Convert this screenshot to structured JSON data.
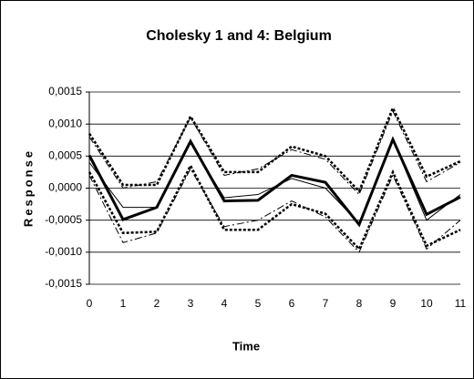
{
  "chart_data": {
    "type": "line",
    "title": "Cholesky 1 and 4: Belgium",
    "x_label": "Time",
    "y_label": "Response",
    "x": [
      0,
      1,
      2,
      3,
      4,
      5,
      6,
      7,
      8,
      9,
      10,
      11
    ],
    "xlim": [
      0,
      11
    ],
    "xticks": [
      0,
      1,
      2,
      3,
      4,
      5,
      6,
      7,
      8,
      9,
      10,
      11
    ],
    "ylim": [
      -0.0015,
      0.0015
    ],
    "yticks": [
      {
        "value": -0.0015,
        "label": "-0,0015"
      },
      {
        "value": -0.001,
        "label": "-0,0010"
      },
      {
        "value": -0.0005,
        "label": "-0,0005"
      },
      {
        "value": 0,
        "label": "0,0000"
      },
      {
        "value": 0.0005,
        "label": "0,0005"
      },
      {
        "value": 0.001,
        "label": "0,0010"
      },
      {
        "value": 0.0015,
        "label": "0,0015"
      }
    ],
    "grid": true,
    "series": [
      {
        "color": "#000000",
        "dash": "none",
        "width": 3,
        "values": [
          0.00051,
          -0.00049,
          -0.0003,
          0.00073,
          -0.0002,
          -0.00019,
          0.0002,
          9e-05,
          -0.00057,
          0.00076,
          -0.00041,
          -0.00014
        ]
      },
      {
        "color": "#000000",
        "dash": "none",
        "width": 1,
        "values": [
          0.0004,
          -0.0003,
          -0.0003,
          0.0007,
          -0.00015,
          -0.0001,
          0.00015,
          0.0,
          -0.00055,
          0.00075,
          -0.0005,
          -0.0001
        ]
      },
      {
        "color": "#000000",
        "dash": "8 3 2 3",
        "width": 1,
        "values": [
          0.0008,
          0.0,
          0.0001,
          0.0011,
          0.0002,
          0.0003,
          0.0006,
          0.00045,
          -0.0001,
          0.0012,
          0.0001,
          0.0004
        ]
      },
      {
        "color": "#000000",
        "dash": "3 2",
        "width": 2.5,
        "values": [
          0.00085,
          5e-05,
          5e-05,
          0.00112,
          0.00025,
          0.00025,
          0.00065,
          0.0005,
          -5e-05,
          0.00125,
          0.00018,
          0.00042
        ]
      },
      {
        "color": "#000000",
        "dash": "8 3 2 3",
        "width": 1,
        "values": [
          0.0002,
          -0.00085,
          -0.0007,
          0.0003,
          -0.0006,
          -0.0005,
          -0.0002,
          -0.00045,
          -0.001,
          0.0002,
          -0.00095,
          -0.0005
        ]
      },
      {
        "color": "#000000",
        "dash": "3 2",
        "width": 2.5,
        "values": [
          0.00025,
          -0.0007,
          -0.00068,
          0.00035,
          -0.00065,
          -0.00065,
          -0.00025,
          -0.0004,
          -0.00095,
          0.00025,
          -0.0009,
          -0.00065
        ]
      }
    ]
  }
}
